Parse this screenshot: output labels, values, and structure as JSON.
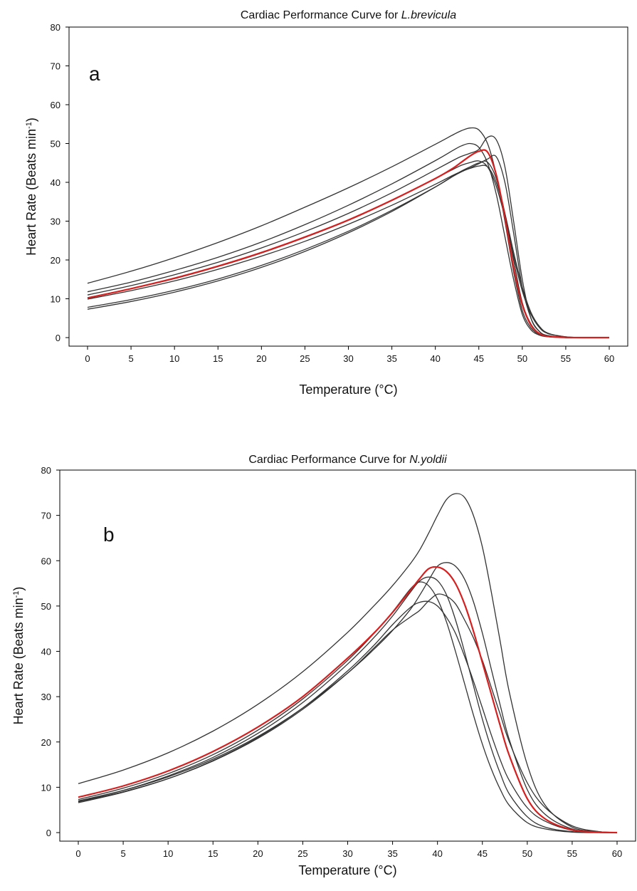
{
  "chart_data": [
    {
      "type": "line",
      "title_prefix": "Cardiac Performance Curve for ",
      "title_species": "L.brevicula",
      "panel_label": "a",
      "xlabel": "Temperature (°C)",
      "ylabel_main": "Heart Rate (Beats min",
      "ylabel_sup": "-1",
      "ylabel_close": ")",
      "xlim": [
        0,
        60
      ],
      "ylim": [
        0,
        80
      ],
      "xticks": [
        0,
        5,
        10,
        15,
        20,
        25,
        30,
        35,
        40,
        45,
        50,
        55,
        60
      ],
      "yticks": [
        0,
        10,
        20,
        30,
        40,
        50,
        60,
        70,
        80
      ],
      "grid": false,
      "x": [
        0,
        5,
        10,
        15,
        20,
        25,
        30,
        35,
        40,
        42,
        43,
        44,
        45,
        46,
        47,
        48,
        49,
        50,
        51,
        52,
        53,
        55,
        57,
        60
      ],
      "series": [
        {
          "color": "#333333",
          "values": [
            14,
            17.1,
            20.6,
            24.5,
            28.8,
            33.6,
            38.6,
            44,
            49.8,
            52.2,
            53.3,
            54,
            53.5,
            50,
            42,
            30,
            17,
            7,
            2.5,
            0.8,
            0.3,
            0,
            0,
            0
          ]
        },
        {
          "color": "#333333",
          "values": [
            11.8,
            14.3,
            17.3,
            20.7,
            24.6,
            29.1,
            34.1,
            39.6,
            45.6,
            48.2,
            49.4,
            50,
            49,
            45,
            37,
            26,
            15,
            6,
            2,
            0.6,
            0.2,
            0,
            0,
            0
          ]
        },
        {
          "color": "#333333",
          "values": [
            11,
            13.4,
            16.2,
            19.4,
            23.1,
            27.3,
            32,
            37.3,
            43.2,
            45.6,
            46.7,
            47.5,
            48.5,
            51.6,
            51,
            44,
            30,
            15,
            5,
            1.5,
            0.5,
            0,
            0,
            0
          ]
        },
        {
          "color": "#333333",
          "values": [
            10.3,
            12.6,
            15.2,
            18.3,
            21.8,
            25.8,
            30.2,
            35.3,
            41,
            43.3,
            44.4,
            45.1,
            45.5,
            44,
            39,
            31,
            21,
            12,
            6,
            2.5,
            1,
            0.2,
            0,
            0
          ]
        },
        {
          "color": "#333333",
          "values": [
            9.9,
            12.1,
            14.6,
            17.6,
            21,
            24.8,
            29.2,
            34.1,
            39.5,
            41.8,
            42.8,
            43.6,
            44.2,
            44,
            40,
            32,
            22,
            13,
            6.5,
            2.8,
            1.1,
            0.2,
            0,
            0
          ]
        },
        {
          "color": "#333333",
          "values": [
            7.8,
            9.8,
            12.2,
            15.1,
            18.6,
            22.7,
            27.4,
            32.8,
            38.8,
            41.5,
            42.7,
            43.7,
            44.8,
            46,
            46.6,
            40,
            27,
            13,
            5,
            1.5,
            0.5,
            0,
            0,
            0
          ]
        },
        {
          "color": "#333333",
          "values": [
            7.3,
            9.3,
            11.7,
            14.6,
            18.1,
            22.2,
            27,
            32.5,
            38.8,
            41.6,
            42.9,
            44,
            45,
            45.2,
            41,
            32,
            20,
            9,
            3.5,
            1,
            0.3,
            0,
            0,
            0
          ]
        },
        {
          "color": "#d62020",
          "mean": true,
          "values": [
            10.2,
            12.6,
            15.3,
            18.4,
            21.9,
            25.9,
            30.3,
            35.4,
            41,
            43.6,
            45.2,
            46.8,
            48,
            47.8,
            42,
            31,
            18,
            8.5,
            3.2,
            1,
            0.3,
            0.05,
            0,
            0
          ]
        }
      ]
    },
    {
      "type": "line",
      "title_prefix": "Cardiac Performance Curve for ",
      "title_species": "N.yoldii",
      "panel_label": "b",
      "xlabel": "Temperature (°C)",
      "ylabel_main": "Heart Rate (Beats min",
      "ylabel_sup": "-1",
      "ylabel_close": ")",
      "xlim": [
        0,
        60
      ],
      "ylim": [
        0,
        80
      ],
      "xticks": [
        0,
        5,
        10,
        15,
        20,
        25,
        30,
        35,
        40,
        45,
        50,
        55,
        60
      ],
      "yticks": [
        0,
        10,
        20,
        30,
        40,
        50,
        60,
        70,
        80
      ],
      "grid": false,
      "x": [
        0,
        5,
        10,
        15,
        20,
        25,
        30,
        33,
        35,
        37,
        38,
        39,
        40,
        41,
        42,
        43,
        44,
        45,
        46,
        47,
        48,
        50,
        52,
        55,
        58,
        60
      ],
      "series": [
        {
          "color": "#333333",
          "values": [
            10.8,
            13.8,
            17.6,
            22.4,
            28.3,
            35.5,
            44.2,
            50.2,
            54.5,
            59.4,
            62.3,
            66,
            70,
            73.5,
            74.8,
            74,
            70,
            63,
            53,
            42,
            31,
            15,
            6,
            1.2,
            0.2,
            0
          ]
        },
        {
          "color": "#333333",
          "values": [
            7,
            9.3,
            12.3,
            16.2,
            21.2,
            27.5,
            35.2,
            40.6,
            44.6,
            49.3,
            52.3,
            55.6,
            58.8,
            59.6,
            58.8,
            56,
            51,
            44,
            36,
            28,
            20.5,
            9.5,
            4,
            0.8,
            0.1,
            0
          ]
        },
        {
          "color": "#333333",
          "values": [
            6.8,
            9,
            11.9,
            15.8,
            20.8,
            27.2,
            35.2,
            40.9,
            44.7,
            47.6,
            49,
            51.1,
            52.6,
            52.2,
            50.5,
            47,
            43,
            38,
            32,
            26,
            20,
            11,
            5.5,
            1.5,
            0.2,
            0
          ]
        },
        {
          "color": "#333333",
          "values": [
            6.6,
            8.9,
            11.9,
            15.9,
            21,
            27.5,
            35.7,
            41.5,
            45.9,
            49.7,
            50.8,
            51,
            50,
            47.5,
            44,
            39,
            33.5,
            27.5,
            21.5,
            16,
            11.5,
            5.5,
            2.5,
            0.5,
            0.1,
            0
          ]
        },
        {
          "color": "#333333",
          "values": [
            7.3,
            9.8,
            13,
            17.2,
            22.6,
            29.5,
            38,
            44.1,
            48.7,
            53.8,
            55.3,
            54.5,
            51.5,
            46.5,
            40,
            33,
            26,
            19.5,
            14,
            9.5,
            6,
            2.2,
            0.8,
            0.1,
            0,
            0
          ]
        },
        {
          "color": "#333333",
          "values": [
            6.9,
            9.3,
            12.5,
            16.6,
            21.9,
            28.7,
            37.2,
            43.2,
            47.8,
            53.1,
            55.5,
            56.4,
            55.6,
            52.5,
            47,
            40,
            32.5,
            25,
            18.5,
            13,
            8.5,
            3.5,
            1.2,
            0.2,
            0,
            0
          ]
        },
        {
          "color": "#d62020",
          "mean": true,
          "values": [
            7.8,
            10.3,
            13.6,
            17.9,
            23.3,
            30,
            38.5,
            44.2,
            48.6,
            53.5,
            56,
            58.2,
            58.6,
            57.6,
            55,
            50.5,
            44.5,
            37.5,
            30.5,
            23.5,
            17,
            7.5,
            3,
            0.6,
            0.1,
            0
          ]
        }
      ]
    }
  ]
}
